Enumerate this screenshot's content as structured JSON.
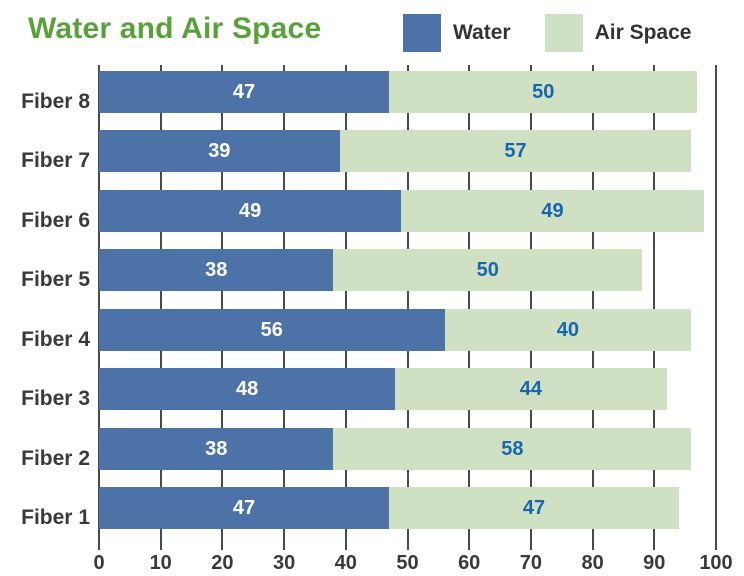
{
  "header": {
    "title": "Water and Air Space"
  },
  "colors": {
    "title": "#59A23B",
    "water_bar": "#4D72A7",
    "air_space_bar": "#CFE0C3",
    "value_on_water": "#FFFFFF",
    "value_on_air_space": "#1767B0",
    "axis_text": "#3A3A3A",
    "gridline": "#4A4A4A"
  },
  "chart_data": {
    "type": "bar",
    "orientation": "horizontal",
    "stacked": true,
    "title": "Water and Air Space",
    "categories": [
      "Fiber 8",
      "Fiber 7",
      "Fiber 6",
      "Fiber 5",
      "Fiber 4",
      "Fiber 3",
      "Fiber 2",
      "Fiber 1"
    ],
    "series": [
      {
        "name": "Water",
        "color": "#4D72A7",
        "label_color": "#FFFFFF",
        "values": [
          47,
          39,
          49,
          38,
          56,
          48,
          38,
          47
        ]
      },
      {
        "name": "Air Space",
        "color": "#CFE0C3",
        "label_color": "#1767B0",
        "values": [
          50,
          57,
          49,
          50,
          40,
          44,
          58,
          47
        ]
      }
    ],
    "x_ticks": [
      0,
      10,
      20,
      30,
      40,
      50,
      60,
      70,
      80,
      90,
      100
    ],
    "xlim": [
      0,
      100
    ],
    "xlabel": "",
    "ylabel": "",
    "grid": "vertical",
    "legend_position": "top-right",
    "data_labels": "inside-center"
  }
}
